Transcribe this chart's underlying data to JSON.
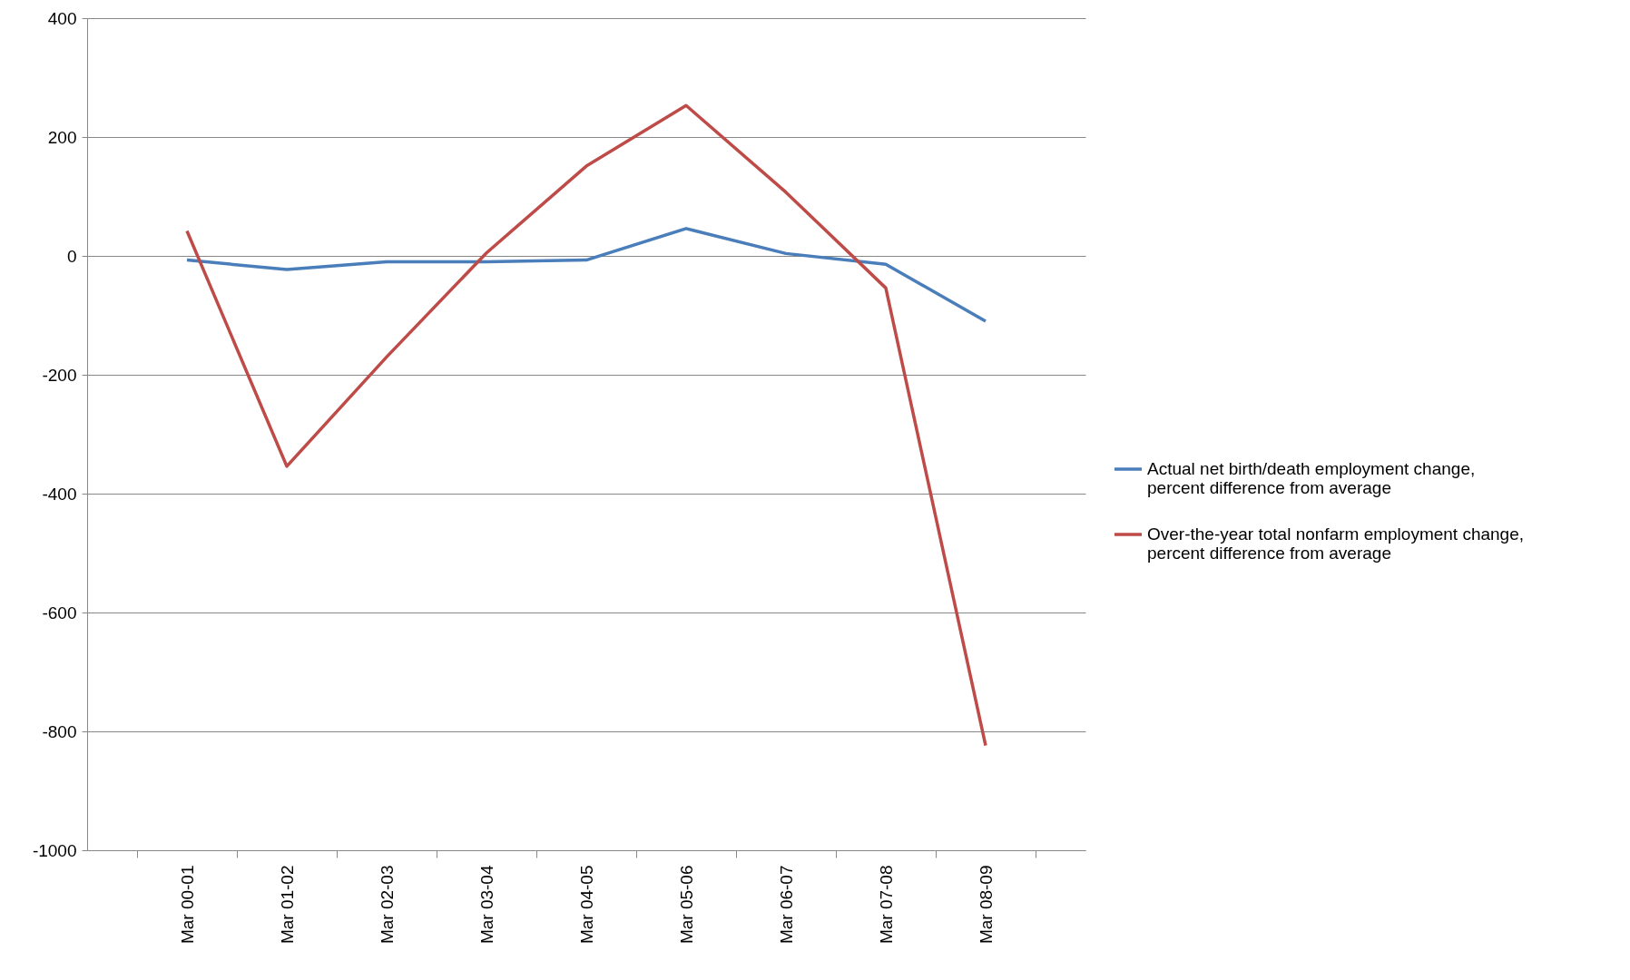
{
  "chart_data": {
    "type": "line",
    "categories": [
      "Mar 00-01",
      "Mar 01-02",
      "Mar 02-03",
      "Mar 03-04",
      "Mar 04-05",
      "Mar 05-06",
      "Mar 06-07",
      "Mar 07-08",
      "Mar 08-09"
    ],
    "series": [
      {
        "name": "Actual net birth/death  employment change, percent difference from average",
        "color": "#4a7ebb",
        "values": [
          -7,
          -23,
          -10,
          -10,
          -7,
          46,
          4,
          -14,
          -110
        ]
      },
      {
        "name": "Over-the-year total  nonfarm employment change, percent difference from average",
        "color": "#be4b48",
        "values": [
          42,
          -354,
          -170,
          5,
          151,
          253,
          107,
          -54,
          -824
        ]
      }
    ],
    "ylim": [
      -1000,
      400
    ],
    "yticks": [
      -1000,
      -800,
      -600,
      -400,
      -200,
      0,
      200,
      400
    ],
    "grid": "y",
    "legend": "right",
    "marker": "none",
    "line_style": "solid"
  }
}
